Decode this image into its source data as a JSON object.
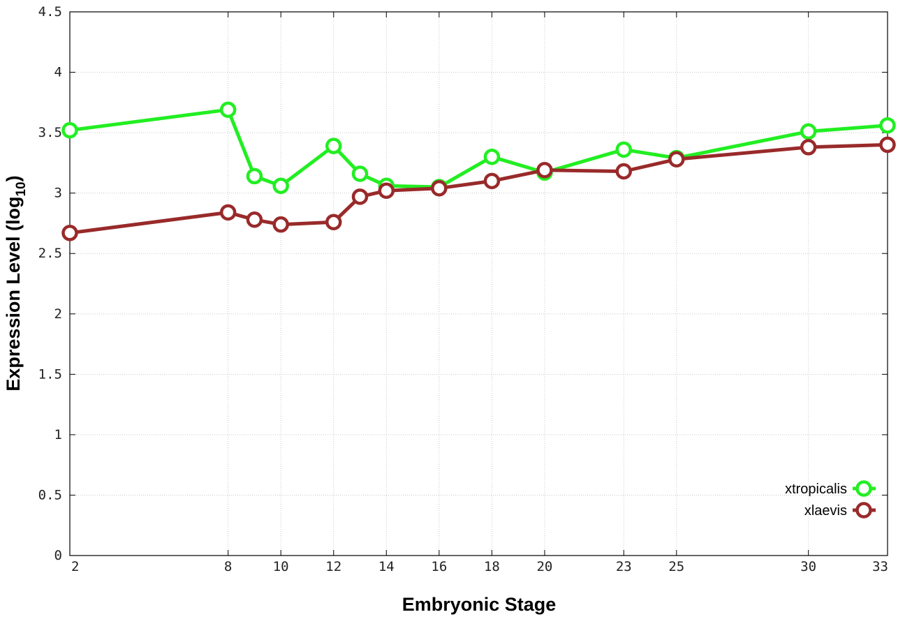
{
  "chart_data": {
    "type": "line",
    "xlabel": "Embryonic Stage",
    "ylabel_main": "Expression Level (log",
    "ylabel_sub": "10",
    "ylabel_close": ")",
    "x_ticks": [
      2,
      8,
      10,
      12,
      14,
      16,
      18,
      20,
      23,
      25,
      30,
      33
    ],
    "y_ticks": [
      "0",
      "0.5",
      "1",
      "1.5",
      "2",
      "2.5",
      "3",
      "3.5",
      "4",
      "4.5"
    ],
    "xlim": [
      2,
      33
    ],
    "ylim": [
      0,
      4.5
    ],
    "grid": true,
    "legend_position": "bottom-right",
    "series": [
      {
        "name": "xtropicalis",
        "color": "#22ee22",
        "x": [
          2,
          8,
          9,
          10,
          12,
          13,
          14,
          16,
          18,
          20,
          23,
          25,
          30,
          33
        ],
        "y": [
          3.52,
          3.69,
          3.14,
          3.06,
          3.39,
          3.16,
          3.06,
          3.05,
          3.3,
          3.17,
          3.36,
          3.29,
          3.51,
          3.56
        ]
      },
      {
        "name": "xlaevis",
        "color": "#992a2a",
        "x": [
          2,
          8,
          9,
          10,
          12,
          13,
          14,
          16,
          18,
          20,
          23,
          25,
          30,
          33
        ],
        "y": [
          2.67,
          2.84,
          2.78,
          2.74,
          2.76,
          2.97,
          3.02,
          3.04,
          3.1,
          3.19,
          3.18,
          3.28,
          3.38,
          3.4
        ]
      }
    ]
  }
}
